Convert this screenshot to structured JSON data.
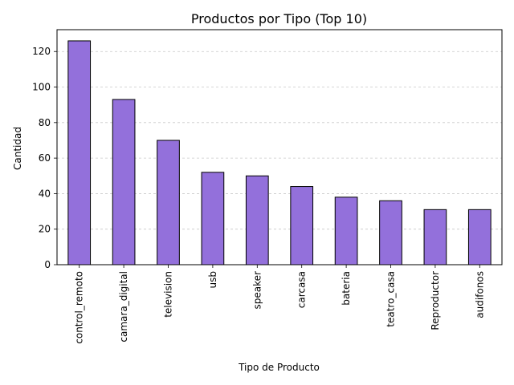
{
  "chart_data": {
    "type": "bar",
    "title": "Productos por Tipo (Top 10)",
    "xlabel": "Tipo de Producto",
    "ylabel": "Cantidad",
    "categories": [
      "control_remoto",
      "camara_digital",
      "television",
      "usb",
      "speaker",
      "carcasa",
      "bateria",
      "teatro_casa",
      "Reproductor",
      "audifonos"
    ],
    "values": [
      126,
      93,
      70,
      52,
      50,
      44,
      38,
      36,
      31,
      31
    ],
    "ylim": [
      0,
      132.3
    ],
    "yticks": [
      0,
      20,
      40,
      60,
      80,
      100,
      120
    ],
    "grid": "y-dashed",
    "legend": "none",
    "colors": {
      "bar_fill": "#9370db",
      "bar_edge": "#000000",
      "grid": "#c8c8c8"
    }
  }
}
